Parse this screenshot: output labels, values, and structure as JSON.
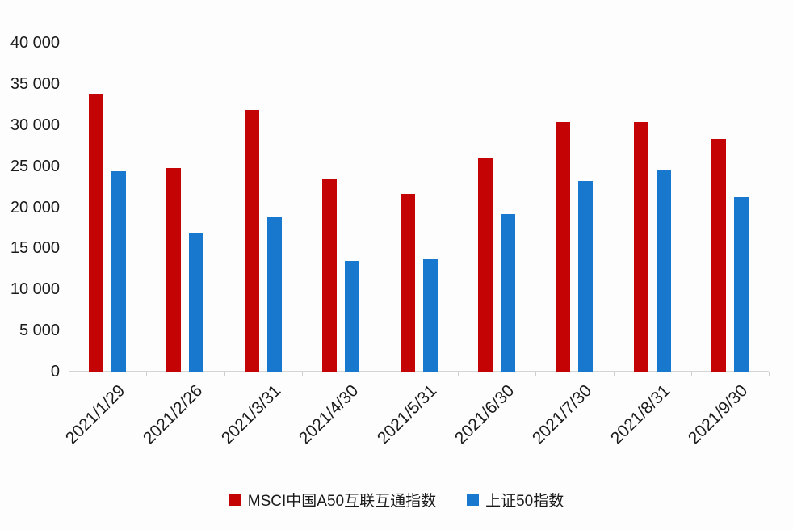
{
  "chart_data": {
    "type": "bar",
    "title": "",
    "xlabel": "",
    "ylabel": "",
    "categories": [
      "2021/1/29",
      "2021/2/26",
      "2021/3/31",
      "2021/4/30",
      "2021/5/31",
      "2021/6/30",
      "2021/7/30",
      "2021/8/31",
      "2021/9/30"
    ],
    "series": [
      {
        "name": "MSCI中国A50互联互通指数",
        "color": "#c40404",
        "values": [
          33800,
          24800,
          31800,
          23400,
          21600,
          26000,
          30400,
          30400,
          28300
        ]
      },
      {
        "name": "上证50指数",
        "color": "#1878ce",
        "values": [
          24400,
          16800,
          18900,
          13500,
          13800,
          19200,
          23200,
          24500,
          21200
        ]
      }
    ],
    "ylim": [
      0,
      40000
    ],
    "y_tick_step": 5000,
    "y_tick_labels": [
      "0",
      "5 000",
      "10 000",
      "15 000",
      "20 000",
      "25 000",
      "30 000",
      "35 000",
      "40 000"
    ],
    "grid": "off",
    "legend_position": "bottom",
    "axis_line_color": "#d5d5d5",
    "text_color": "#1a1a1a"
  }
}
